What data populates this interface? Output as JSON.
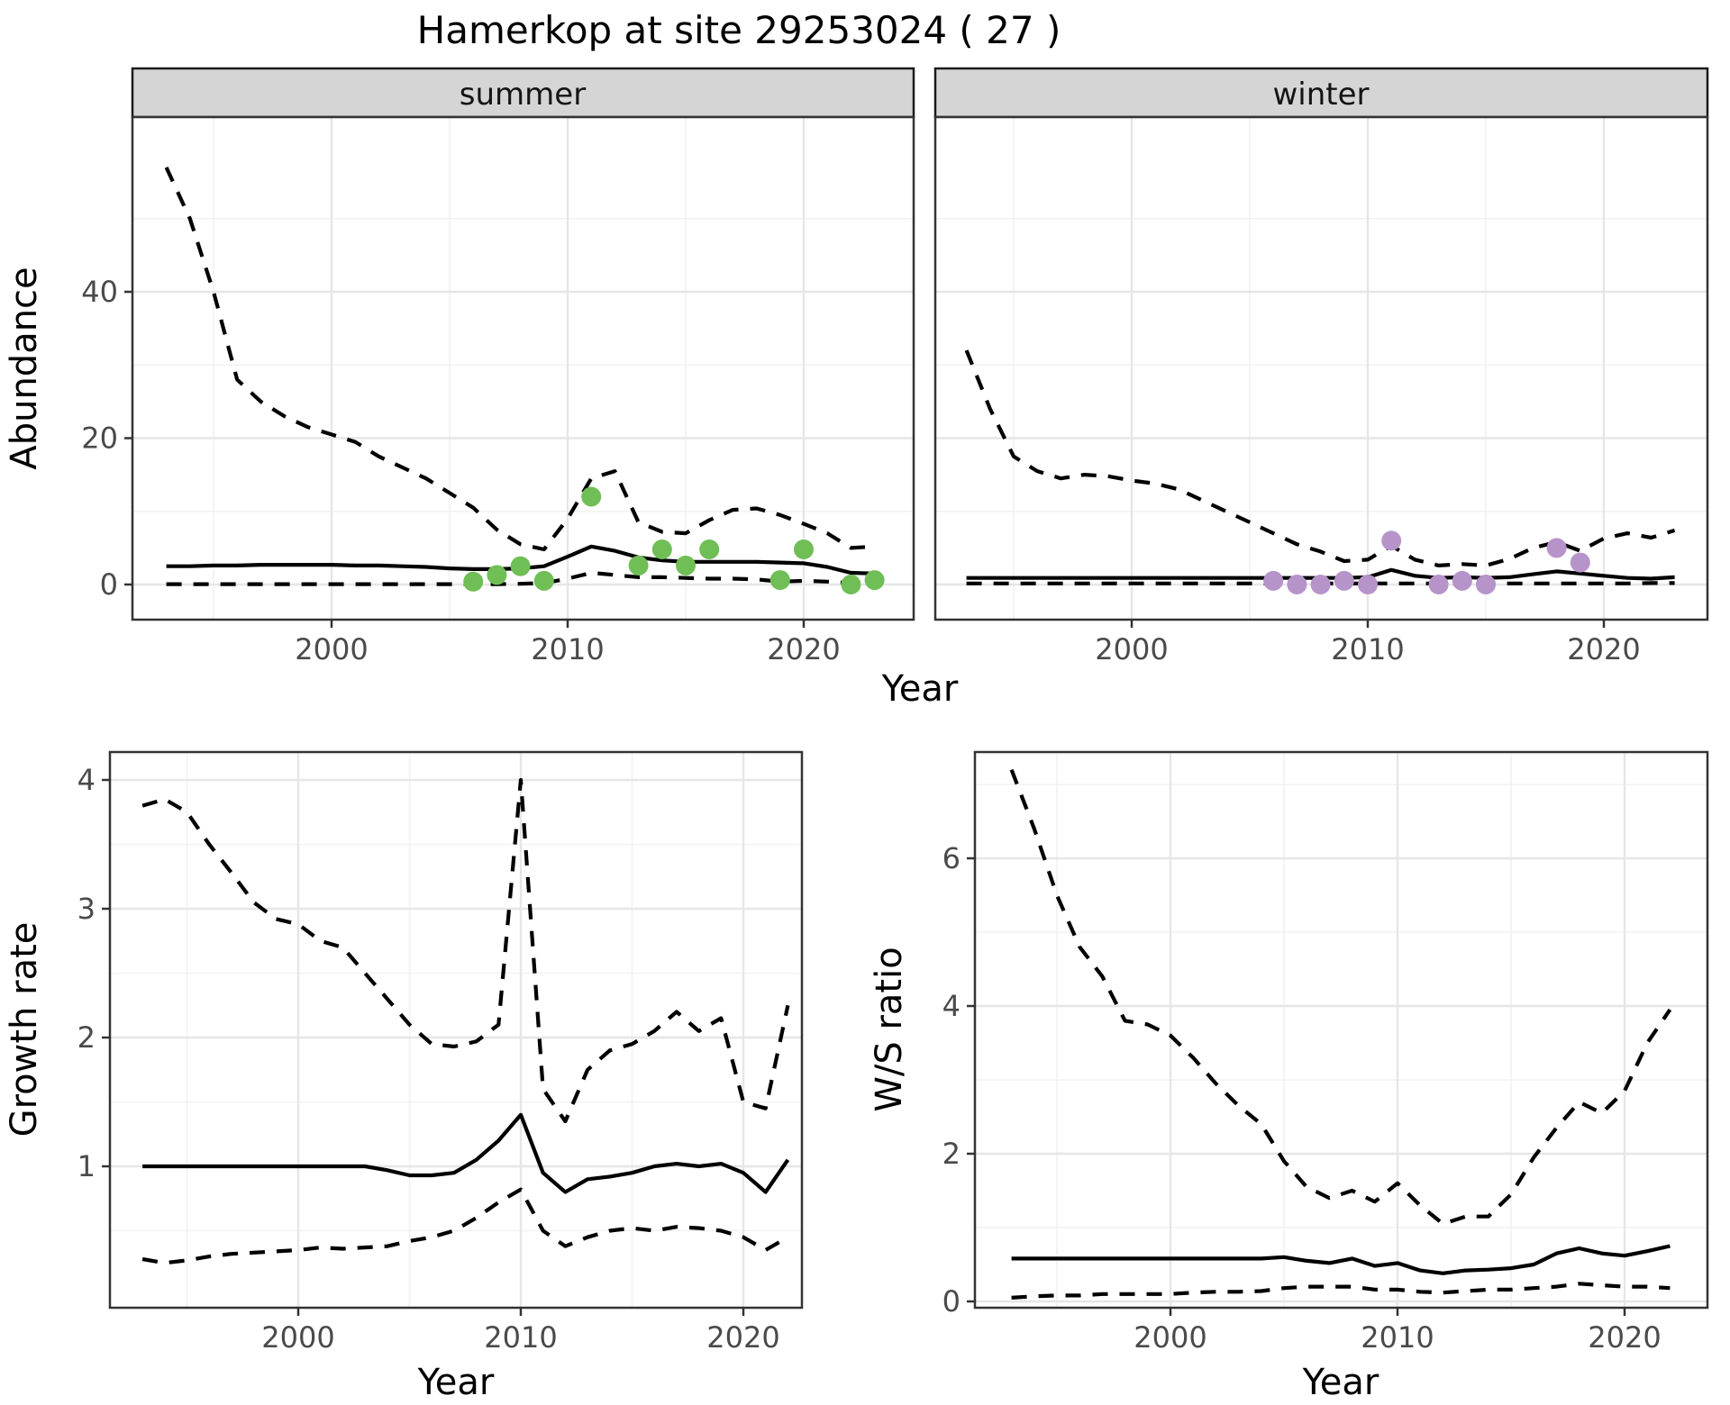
{
  "title": "Hamerkop at site 29253024 ( 27 )",
  "facets": [
    {
      "label": "summer"
    },
    {
      "label": "winter"
    }
  ],
  "axes": {
    "year_label": "Year",
    "abundance_label": "Abundance",
    "growth_label": "Growth rate",
    "ws_label": "W/S ratio"
  },
  "colors": {
    "summer_points": "#70be56",
    "winter_points": "#b694c9",
    "line": "#000000",
    "grid_major": "#e6e6e6",
    "grid_minor": "#f2f2f2",
    "strip_bg": "#d5d5d5",
    "panel_border": "#333333",
    "tick_text": "#4a4a4a"
  },
  "chart_data": [
    {
      "id": "abundance_summer",
      "type": "line",
      "facet": "summer",
      "xlabel": "Year",
      "ylabel": "Abundance",
      "x_ticks": [
        2000,
        2010,
        2020
      ],
      "x_minor": [
        1995,
        2005,
        2015
      ],
      "y_ticks": [
        0,
        20,
        40
      ],
      "y_minor": [
        10,
        30,
        50
      ],
      "xlim": [
        1991,
        2024.7
      ],
      "ylim": [
        -4.8,
        63.9
      ],
      "years": [
        1993,
        1994,
        1995,
        1996,
        1997,
        1998,
        1999,
        2000,
        2001,
        2002,
        2003,
        2004,
        2005,
        2006,
        2007,
        2008,
        2009,
        2010,
        2011,
        2012,
        2013,
        2014,
        2015,
        2016,
        2017,
        2018,
        2019,
        2020,
        2021,
        2022,
        2023
      ],
      "series": [
        {
          "name": "upper_95ci",
          "style": "dashed",
          "values": [
            57,
            50,
            40,
            28,
            25,
            23,
            21.5,
            20.5,
            19.5,
            17.5,
            16,
            14.5,
            12.5,
            10.5,
            7.5,
            5.5,
            4.8,
            9,
            14.5,
            15.5,
            8.5,
            7.2,
            7,
            8.8,
            10.2,
            10.4,
            9.5,
            8.3,
            7,
            5,
            5.2
          ]
        },
        {
          "name": "mean",
          "style": "solid",
          "values": [
            2.5,
            2.5,
            2.6,
            2.6,
            2.7,
            2.7,
            2.7,
            2.7,
            2.6,
            2.6,
            2.5,
            2.4,
            2.2,
            2.1,
            2.1,
            2.2,
            2.5,
            3.8,
            5.2,
            4.6,
            3.7,
            3.3,
            3.1,
            3.1,
            3.1,
            3.1,
            3.0,
            2.9,
            2.4,
            1.6,
            1.5
          ]
        },
        {
          "name": "lower_95ci",
          "style": "dashed",
          "values": [
            0.05,
            0.05,
            0.05,
            0.05,
            0.05,
            0.05,
            0.05,
            0.05,
            0.05,
            0.05,
            0.05,
            0.05,
            0.05,
            0.05,
            0.05,
            0.1,
            0.2,
            0.8,
            1.6,
            1.3,
            1.0,
            1.0,
            0.9,
            0.8,
            0.8,
            0.7,
            0.4,
            0.5,
            0.4,
            0.2,
            0.2
          ]
        }
      ],
      "points": {
        "color": "#70be56",
        "data": [
          [
            2006,
            0.4
          ],
          [
            2007,
            1.3
          ],
          [
            2008,
            2.5
          ],
          [
            2009,
            0.5
          ],
          [
            2011,
            12
          ],
          [
            2013,
            2.6
          ],
          [
            2014,
            4.8
          ],
          [
            2015,
            2.6
          ],
          [
            2016,
            4.8
          ],
          [
            2019,
            0.6
          ],
          [
            2020,
            4.8
          ],
          [
            2022,
            0
          ],
          [
            2023,
            0.6
          ]
        ]
      }
    },
    {
      "id": "abundance_winter",
      "type": "line",
      "facet": "winter",
      "xlabel": "Year",
      "ylabel": "Abundance",
      "x_ticks": [
        2000,
        2010,
        2020
      ],
      "x_minor": [
        1995,
        2005,
        2015
      ],
      "y_ticks": [
        0,
        20,
        40
      ],
      "y_minor": [
        10,
        30,
        50
      ],
      "xlim": [
        1991.7,
        2024.4
      ],
      "ylim": [
        -4.8,
        63.9
      ],
      "years": [
        1993,
        1994,
        1995,
        1996,
        1997,
        1998,
        1999,
        2000,
        2001,
        2002,
        2003,
        2004,
        2005,
        2006,
        2007,
        2008,
        2009,
        2010,
        2011,
        2012,
        2013,
        2014,
        2015,
        2016,
        2017,
        2018,
        2019,
        2020,
        2021,
        2022,
        2023
      ],
      "series": [
        {
          "name": "upper_95ci",
          "style": "dashed",
          "values": [
            32,
            24,
            17.5,
            15.5,
            14.5,
            15,
            14.8,
            14.2,
            13.8,
            13,
            11.5,
            10,
            8.5,
            7,
            5.5,
            4.5,
            3.2,
            3.4,
            5.3,
            3.4,
            2.6,
            2.8,
            2.6,
            3.5,
            5,
            5.8,
            4.6,
            6.3,
            7,
            6.4,
            7.4
          ]
        },
        {
          "name": "mean",
          "style": "solid",
          "values": [
            0.9,
            0.9,
            0.9,
            0.9,
            0.9,
            0.9,
            0.9,
            0.9,
            0.9,
            0.9,
            0.9,
            0.9,
            0.9,
            0.9,
            0.9,
            0.9,
            0.9,
            1.0,
            2.0,
            1.2,
            0.9,
            1.0,
            0.9,
            1.0,
            1.4,
            1.8,
            1.5,
            1.2,
            0.9,
            0.8,
            1.0
          ]
        },
        {
          "name": "lower_95ci",
          "style": "dashed",
          "values": [
            0.15,
            0.15,
            0.15,
            0.15,
            0.15,
            0.15,
            0.15,
            0.15,
            0.15,
            0.15,
            0.15,
            0.15,
            0.15,
            0.15,
            0.15,
            0.15,
            0.15,
            0.15,
            0.15,
            0.15,
            0.15,
            0.15,
            0.15,
            0.15,
            0.15,
            0.15,
            0.15,
            0.15,
            0.15,
            0.2,
            0.2
          ]
        }
      ],
      "points": {
        "color": "#b694c9",
        "data": [
          [
            2006,
            0.5
          ],
          [
            2007,
            0
          ],
          [
            2008,
            0
          ],
          [
            2009,
            0.5
          ],
          [
            2010,
            0
          ],
          [
            2011,
            6
          ],
          [
            2013,
            0
          ],
          [
            2014,
            0.5
          ],
          [
            2015,
            0
          ],
          [
            2018,
            5
          ],
          [
            2019,
            3
          ]
        ]
      }
    },
    {
      "id": "growth_rate",
      "type": "line",
      "facet": null,
      "xlabel": "Year",
      "ylabel": "Growth rate",
      "x_ticks": [
        2000,
        2010,
        2020
      ],
      "x_minor": [
        1995,
        2005,
        2015
      ],
      "y_ticks": [
        1,
        2,
        3,
        4
      ],
      "y_minor": [
        0.5,
        1.5,
        2.5,
        3.5
      ],
      "xlim": [
        1991.5,
        2022.6
      ],
      "ylim": [
        -0.1,
        4.2
      ],
      "years": [
        1993,
        1994,
        1995,
        1996,
        1997,
        1998,
        1999,
        2000,
        2001,
        2002,
        2003,
        2004,
        2005,
        2006,
        2007,
        2008,
        2009,
        2010,
        2011,
        2012,
        2013,
        2014,
        2015,
        2016,
        2017,
        2018,
        2019,
        2020,
        2021,
        2022
      ],
      "series": [
        {
          "name": "upper_95ci",
          "style": "dashed",
          "values": [
            3.8,
            3.85,
            3.75,
            3.5,
            3.28,
            3.05,
            2.92,
            2.88,
            2.75,
            2.7,
            2.5,
            2.3,
            2.1,
            1.95,
            1.93,
            1.97,
            2.1,
            4.0,
            1.6,
            1.35,
            1.75,
            1.9,
            1.95,
            2.05,
            2.2,
            2.05,
            2.15,
            1.5,
            1.45,
            2.25
          ]
        },
        {
          "name": "mean",
          "style": "solid",
          "values": [
            1.0,
            1.0,
            1.0,
            1.0,
            1.0,
            1.0,
            1.0,
            1.0,
            1.0,
            1.0,
            1.0,
            0.97,
            0.93,
            0.93,
            0.95,
            1.05,
            1.2,
            1.4,
            0.95,
            0.8,
            0.9,
            0.92,
            0.95,
            1.0,
            1.02,
            1.0,
            1.02,
            0.95,
            0.8,
            1.05
          ]
        },
        {
          "name": "lower_95ci",
          "style": "dashed",
          "values": [
            0.28,
            0.25,
            0.27,
            0.3,
            0.32,
            0.33,
            0.34,
            0.35,
            0.37,
            0.36,
            0.37,
            0.38,
            0.42,
            0.45,
            0.5,
            0.6,
            0.72,
            0.82,
            0.5,
            0.38,
            0.45,
            0.5,
            0.52,
            0.5,
            0.53,
            0.52,
            0.5,
            0.45,
            0.35,
            0.45
          ]
        }
      ]
    },
    {
      "id": "ws_ratio",
      "type": "line",
      "facet": null,
      "xlabel": "Year",
      "ylabel": "W/S ratio",
      "x_ticks": [
        2000,
        2010,
        2020
      ],
      "x_minor": [
        1995,
        2005,
        2015
      ],
      "y_ticks": [
        0,
        2,
        4,
        6
      ],
      "y_minor": [
        1,
        3,
        5,
        7
      ],
      "xlim": [
        1991.4,
        2023.7
      ],
      "ylim": [
        -0.1,
        7.45
      ],
      "years": [
        1993,
        1994,
        1995,
        1996,
        1997,
        1998,
        1999,
        2000,
        2001,
        2002,
        2003,
        2004,
        2005,
        2006,
        2007,
        2008,
        2009,
        2010,
        2011,
        2012,
        2013,
        2014,
        2015,
        2016,
        2017,
        2018,
        2019,
        2020,
        2021,
        2022
      ],
      "series": [
        {
          "name": "upper_95ci",
          "style": "dashed",
          "values": [
            7.2,
            6.4,
            5.5,
            4.8,
            4.4,
            3.8,
            3.75,
            3.6,
            3.3,
            2.95,
            2.65,
            2.4,
            1.9,
            1.55,
            1.4,
            1.5,
            1.35,
            1.6,
            1.3,
            1.05,
            1.15,
            1.15,
            1.45,
            1.95,
            2.35,
            2.7,
            2.55,
            2.85,
            3.5,
            3.95
          ]
        },
        {
          "name": "mean",
          "style": "solid",
          "values": [
            0.58,
            0.58,
            0.58,
            0.58,
            0.58,
            0.58,
            0.58,
            0.58,
            0.58,
            0.58,
            0.58,
            0.58,
            0.6,
            0.55,
            0.52,
            0.58,
            0.48,
            0.52,
            0.42,
            0.38,
            0.42,
            0.43,
            0.45,
            0.5,
            0.65,
            0.72,
            0.65,
            0.62,
            0.68,
            0.75
          ]
        },
        {
          "name": "lower_95ci",
          "style": "dashed",
          "values": [
            0.05,
            0.07,
            0.08,
            0.08,
            0.1,
            0.1,
            0.1,
            0.1,
            0.12,
            0.13,
            0.13,
            0.14,
            0.18,
            0.2,
            0.2,
            0.2,
            0.16,
            0.16,
            0.13,
            0.12,
            0.14,
            0.16,
            0.16,
            0.18,
            0.2,
            0.24,
            0.22,
            0.2,
            0.2,
            0.18
          ]
        }
      ]
    }
  ]
}
